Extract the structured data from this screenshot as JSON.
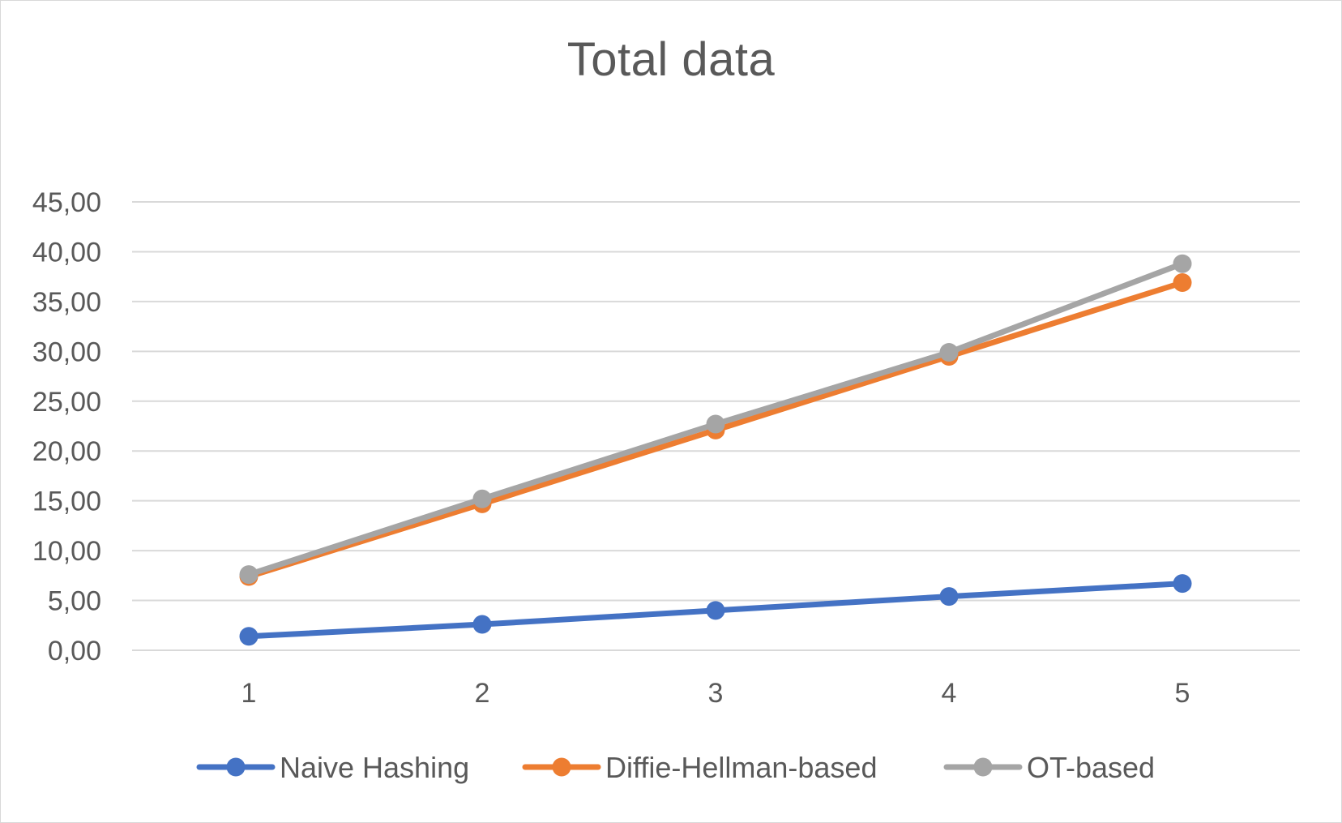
{
  "chart_data": {
    "type": "line",
    "title": "Total data",
    "xlabel": "",
    "ylabel": "",
    "x": [
      1,
      2,
      3,
      4,
      5
    ],
    "x_tick_labels": [
      "1",
      "2",
      "3",
      "4",
      "5"
    ],
    "ylim": [
      0,
      45
    ],
    "y_tick_values": [
      0,
      5,
      10,
      15,
      20,
      25,
      30,
      35,
      40,
      45
    ],
    "y_tick_labels": [
      "0,00",
      "5,00",
      "10,00",
      "15,00",
      "20,00",
      "25,00",
      "30,00",
      "35,00",
      "40,00",
      "45,00"
    ],
    "grid": true,
    "legend_position": "bottom",
    "series": [
      {
        "name": "Naive Hashing",
        "color": "#4472c4",
        "values": [
          1.4,
          2.6,
          4.0,
          5.4,
          6.7
        ]
      },
      {
        "name": "Diffie-Hellman-based",
        "color": "#ed7d31",
        "values": [
          7.4,
          14.7,
          22.1,
          29.5,
          36.9
        ]
      },
      {
        "name": "OT-based",
        "color": "#a5a5a5",
        "values": [
          7.6,
          15.2,
          22.7,
          29.9,
          38.8
        ]
      }
    ]
  }
}
